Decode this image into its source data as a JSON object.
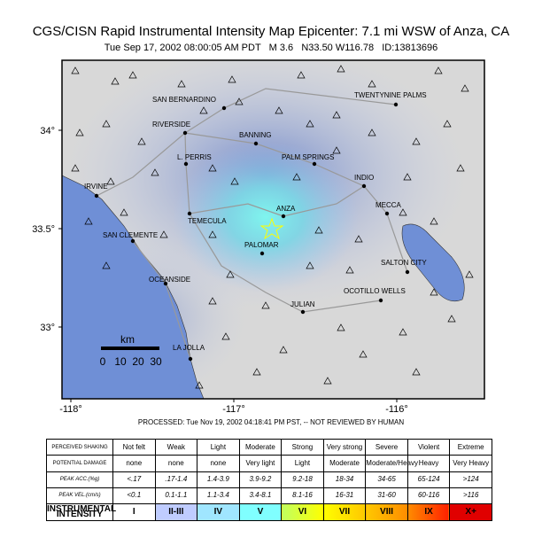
{
  "header": {
    "title": "CGS/CISN Rapid Instrumental Intensity Map Epicenter: 7.1 mi WSW of Anza, CA",
    "subtitle": "Tue Sep 17, 2002 08:00:05 AM PDT   M 3.6   N33.50 W116.78   ID:13813696"
  },
  "map": {
    "cities": [
      "SAN BERNARDINO",
      "RIVERSIDE",
      "BANNING",
      "TWENTYNINE PALMS",
      "L. PERRIS",
      "PALM SPRINGS",
      "INDIO",
      "IRVINE",
      "ANZA",
      "MECCA",
      "TEMECULA",
      "SAN CLEMENTE",
      "PALOMAR",
      "SALTON CITY",
      "OCEANSIDE",
      "OCOTILLO WELLS",
      "JULIAN",
      "LA JOLLA"
    ],
    "lat_labels": [
      "34°",
      "33.5°",
      "33°"
    ],
    "lon_labels": [
      "-118°",
      "-117°",
      "-116°"
    ],
    "scale": {
      "unit": "km",
      "ticks": [
        "0",
        "10",
        "20",
        "30"
      ]
    }
  },
  "note": "PROCESSED: Tue Nov 19, 2002 04:18:41 PM PST, -- NOT REVIEWED BY HUMAN",
  "legend": {
    "rows": [
      {
        "label": "PERCEIVED SHAKING",
        "cells": [
          "Not felt",
          "Weak",
          "Light",
          "Moderate",
          "Strong",
          "Very strong",
          "Severe",
          "Violent",
          "Extreme"
        ]
      },
      {
        "label": "POTENTIAL DAMAGE",
        "cells": [
          "none",
          "none",
          "none",
          "Very light",
          "Light",
          "Moderate",
          "Moderate/Heavy",
          "Heavy",
          "Very Heavy"
        ]
      },
      {
        "label": "PEAK ACC.(%g)",
        "cells": [
          "<.17",
          ".17-1.4",
          "1.4-3.9",
          "3.9-9.2",
          "9.2-18",
          "18-34",
          "34-65",
          "65-124",
          ">124"
        ]
      },
      {
        "label": "PEAK VEL.(cm/s)",
        "cells": [
          "<0.1",
          "0.1-1.1",
          "1.1-3.4",
          "3.4-8.1",
          "8.1-16",
          "16-31",
          "31-60",
          "60-116",
          ">116"
        ]
      },
      {
        "label": "INSTRUMENTAL INTENSITY",
        "cells": [
          "I",
          "II-III",
          "IV",
          "V",
          "VI",
          "VII",
          "VIII",
          "IX",
          "X+"
        ]
      }
    ]
  }
}
